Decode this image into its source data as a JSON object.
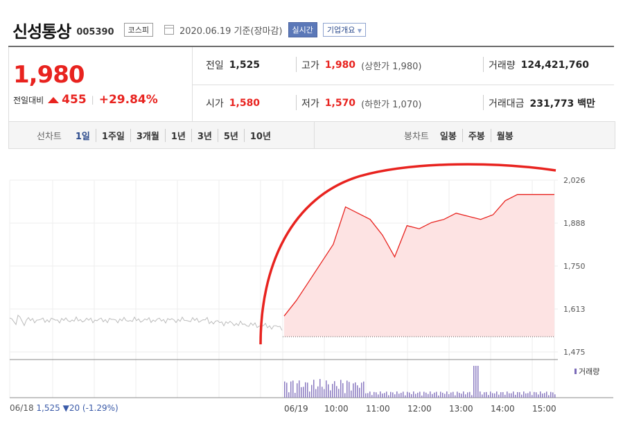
{
  "header": {
    "name": "신성통상",
    "code": "005390",
    "market": "코스피",
    "date": "2020.06.19 기준(장마감)",
    "realtime": "실시간",
    "company": "기업개요"
  },
  "price": {
    "current": "1,980",
    "change_label": "전일대비",
    "change": "455",
    "change_pct": "+29.84%"
  },
  "stats": {
    "prev_label": "전일",
    "prev": "1,525",
    "high_label": "고가",
    "high": "1,980",
    "upper_limit": "(상한가 1,980)",
    "volume_label": "거래량",
    "volume": "124,421,760",
    "open_label": "시가",
    "open": "1,580",
    "low_label": "저가",
    "low": "1,570",
    "lower_limit": "(하한가 1,070)",
    "value_label": "거래대금",
    "value": "231,773 백만"
  },
  "tabs": {
    "line_label": "선차트",
    "line_tabs": [
      "1일",
      "1주일",
      "3개월",
      "1년",
      "3년",
      "5년",
      "10년"
    ],
    "candle_label": "봉차트",
    "candle_tabs": [
      "일봉",
      "주봉",
      "월봉"
    ]
  },
  "footer": {
    "prev_date": "06/18",
    "prev_info": "1,525 ▼20 (-1.29%)"
  },
  "chart_data": {
    "type": "line",
    "y_ticks": [
      "2,026",
      "1,888",
      "1,750",
      "1,613",
      "1,475"
    ],
    "x_labels": [
      "06/19",
      "10:00",
      "11:00",
      "12:00",
      "13:00",
      "14:00",
      "15:00"
    ],
    "volume_legend": "거래량",
    "ylim": [
      1475,
      2026
    ],
    "series": [
      {
        "values": [
          1590,
          1640,
          1700,
          1760,
          1820,
          1940,
          1920,
          1900,
          1850,
          1780,
          1880,
          1870,
          1890,
          1900,
          1920,
          1910,
          1900,
          1915,
          1960,
          1980,
          1980,
          1980,
          1980
        ]
      }
    ],
    "accent": "#e8231f",
    "fill": "#fde3e3"
  }
}
